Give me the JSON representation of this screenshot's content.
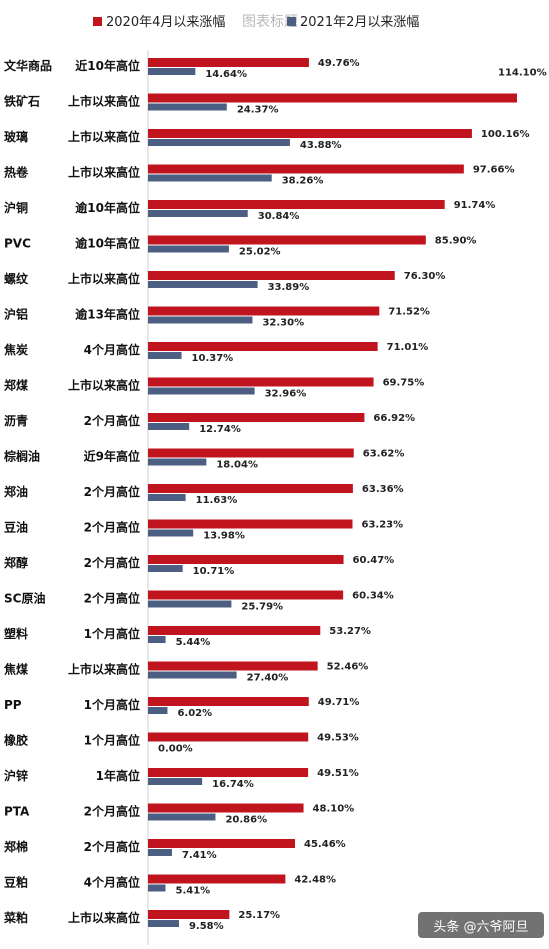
{
  "title": "图表标题",
  "colors": {
    "series_2020": "#c0151f",
    "series_2021": "#4c5f82",
    "axis": "#cfcfcf",
    "watermark_bg": "#5a5a5a"
  },
  "watermark": {
    "text": "头条 @六爷阿旦"
  },
  "chart_data": {
    "type": "bar",
    "orientation": "horizontal",
    "title": "图表标题",
    "legend_position": "top",
    "series": [
      {
        "name": "2020年4月以来涨幅",
        "values": [
          49.76,
          114.1,
          100.16,
          97.66,
          91.74,
          85.9,
          76.3,
          71.52,
          71.01,
          69.75,
          66.92,
          63.62,
          63.36,
          63.23,
          60.47,
          60.34,
          53.27,
          52.46,
          49.71,
          49.53,
          49.51,
          48.1,
          45.46,
          42.48,
          25.17
        ],
        "labels": [
          "49.76%",
          "114.10%",
          "100.16%",
          "97.66%",
          "91.74%",
          "85.90%",
          "76.30%",
          "71.52%",
          "71.01%",
          "69.75%",
          "66.92%",
          "63.62%",
          "63.36%",
          "63.23%",
          "60.47%",
          "60.34%",
          "53.27%",
          "52.46%",
          "49.71%",
          "49.53%",
          "49.51%",
          "48.10%",
          "45.46%",
          "42.48%",
          "25.17%"
        ]
      },
      {
        "name": "2021年2月以来涨幅",
        "values": [
          14.64,
          24.37,
          43.88,
          38.26,
          30.84,
          25.02,
          33.89,
          32.3,
          10.37,
          32.96,
          12.74,
          18.04,
          11.63,
          13.98,
          10.71,
          25.79,
          5.44,
          27.4,
          6.02,
          0.0,
          16.74,
          20.86,
          7.41,
          5.41,
          9.58
        ],
        "labels": [
          "14.64%",
          "24.37%",
          "43.88%",
          "38.26%",
          "30.84%",
          "25.02%",
          "33.89%",
          "32.30%",
          "10.37%",
          "32.96%",
          "12.74%",
          "18.04%",
          "11.63%",
          "13.98%",
          "10.71%",
          "25.79%",
          "5.44%",
          "27.40%",
          "6.02%",
          "0.00%",
          "16.74%",
          "20.86%",
          "7.41%",
          "5.41%",
          "9.58%"
        ]
      }
    ],
    "categories": [
      "文华商品",
      "铁矿石",
      "玻璃",
      "热卷",
      "沪铜",
      "PVC",
      "螺纹",
      "沪铝",
      "焦炭",
      "郑煤",
      "沥青",
      "棕榈油",
      "郑油",
      "豆油",
      "郑醇",
      "SC原油",
      "塑料",
      "焦煤",
      "PP",
      "橡胶",
      "沪锌",
      "PTA",
      "郑棉",
      "豆粕",
      "菜粕"
    ],
    "notes": [
      "近10年高位",
      "上市以来高位",
      "上市以来高位",
      "上市以来高位",
      "逾10年高位",
      "逾10年高位",
      "上市以来高位",
      "逾13年高位",
      "4个月高位",
      "上市以来高位",
      "2个月高位",
      "近9年高位",
      "2个月高位",
      "2个月高位",
      "2个月高位",
      "2个月高位",
      "1个月高位",
      "上市以来高位",
      "1个月高位",
      "1个月高位",
      "1年高位",
      "2个月高位",
      "2个月高位",
      "4个月高位",
      "上市以来高位"
    ],
    "xlim": [
      0,
      114.1
    ],
    "grid": false
  }
}
